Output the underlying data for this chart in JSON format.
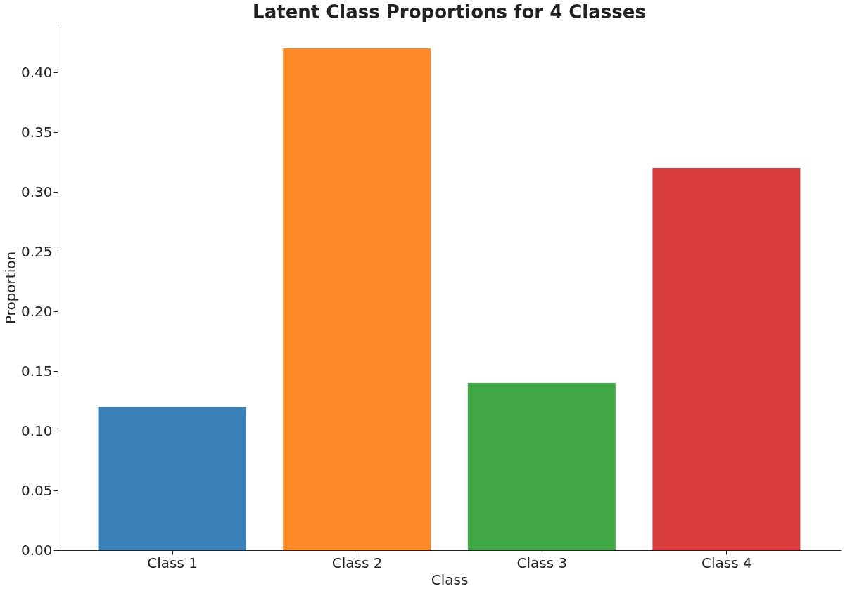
{
  "chart_data": {
    "type": "bar",
    "title": "Latent Class Proportions for 4 Classes",
    "xlabel": "Class",
    "ylabel": "Proportion",
    "categories": [
      "Class 1",
      "Class 2",
      "Class 3",
      "Class 4"
    ],
    "values": [
      0.12,
      0.42,
      0.14,
      0.32
    ],
    "colors": [
      "#3a81ba",
      "#fd8a26",
      "#41a744",
      "#d83c3c"
    ],
    "ylim": [
      0,
      0.44
    ],
    "yticks": [
      {
        "value": 0,
        "label": "0.00"
      },
      {
        "value": 0.05,
        "label": "0.05"
      },
      {
        "value": 0.1,
        "label": "0.10"
      },
      {
        "value": 0.15,
        "label": "0.15"
      },
      {
        "value": 0.2,
        "label": "0.20"
      },
      {
        "value": 0.25,
        "label": "0.25"
      },
      {
        "value": 0.3,
        "label": "0.30"
      },
      {
        "value": 0.35,
        "label": "0.35"
      },
      {
        "value": 0.4,
        "label": "0.40"
      }
    ],
    "grid": false,
    "legend": false
  }
}
